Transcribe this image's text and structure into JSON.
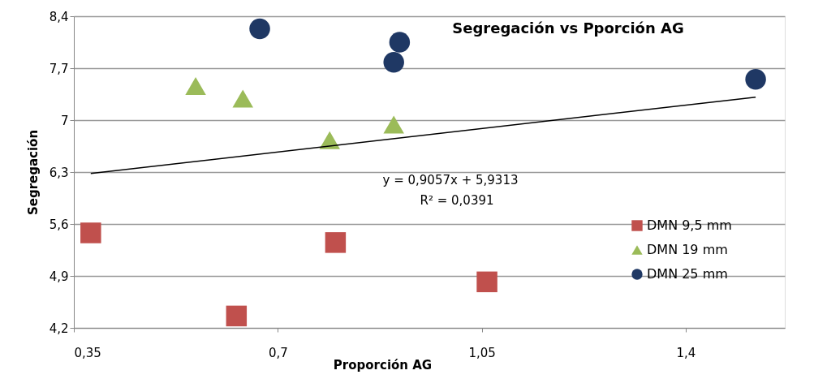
{
  "chart_data": {
    "type": "scatter",
    "title": "Segregación vs Pporción AG",
    "xlabel": "Proporción AG",
    "ylabel": "Segregación",
    "xlim": [
      0.35,
      1.57
    ],
    "ylim": [
      4.2,
      8.4
    ],
    "xticks": [
      {
        "value": 0.35,
        "label": "0,35"
      },
      {
        "value": 0.7,
        "label": "0,7"
      },
      {
        "value": 1.05,
        "label": "1,05"
      },
      {
        "value": 1.4,
        "label": "1,4"
      }
    ],
    "yticks": [
      {
        "value": 4.2,
        "label": "4,2"
      },
      {
        "value": 4.9,
        "label": "4,9"
      },
      {
        "value": 5.6,
        "label": "5,6"
      },
      {
        "value": 6.3,
        "label": "6,3"
      },
      {
        "value": 7,
        "label": "7"
      },
      {
        "value": 7.7,
        "label": "7,7"
      },
      {
        "value": 8.4,
        "label": "8,4"
      }
    ],
    "grid": "y",
    "legend": "right",
    "series": [
      {
        "name": "DMN 9,5 mm",
        "color": "#c0504d",
        "marker": "square",
        "x": [
          0.379,
          0.629,
          0.799,
          1.059
        ],
        "values": [
          5.48,
          4.36,
          5.35,
          4.82
        ]
      },
      {
        "name": "DMN 19 mm",
        "color": "#9bbb59",
        "marker": "triangle",
        "x": [
          0.559,
          0.64,
          0.789,
          0.899
        ],
        "values": [
          7.46,
          7.29,
          6.73,
          6.94
        ]
      },
      {
        "name": "DMN 25 mm",
        "color": "#1f3864",
        "marker": "circle",
        "x": [
          0.669,
          0.909,
          0.899,
          1.52
        ],
        "values": [
          8.23,
          8.05,
          7.78,
          7.55
        ]
      },
      {
        "type": "line",
        "color": "#000000",
        "x": [
          0.379,
          1.52
        ],
        "values": [
          6.28,
          7.31
        ]
      }
    ],
    "annotations": [
      "y = 0,9057x + 5,9313",
      "R² = 0,0391"
    ]
  }
}
